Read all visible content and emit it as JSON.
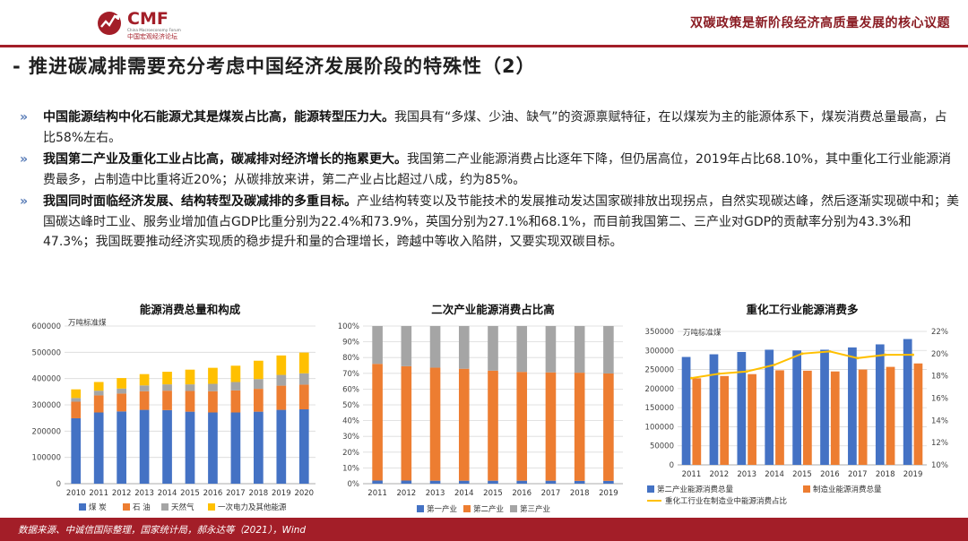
{
  "header": {
    "logo_text": "CMF",
    "logo_subtitle_en": "China Macroeconomy Forum",
    "logo_subtitle_cn": "中国宏观经济论坛",
    "title": "双碳政策是新阶段经济高质量发展的核心议题"
  },
  "section_title": "- 推进碳减排需要充分考虑中国经济发展阶段的特殊性（2）",
  "bullets": [
    {
      "marker": "»",
      "bold": "中国能源结构中化石能源尤其是煤炭占比高，能源转型压力大。",
      "text": "我国具有“多煤、少油、缺气”的资源禀赋特征，在以煤炭为主的能源体系下，煤炭消费总量最高，占比58%左右。"
    },
    {
      "marker": "»",
      "bold": "我国第二产业及重化工业占比高，碳减排对经济增长的拖累更大。",
      "text": "我国第二产业能源消费占比逐年下降，但仍居高位，2019年占比68.10%，其中重化工行业能源消费最多，占制造中比重将近20%；从碳排放来讲，第二产业占比超过八成，约为85%。"
    },
    {
      "marker": "»",
      "bold": "我国同时面临经济发展、结构转型及碳减排的多重目标。",
      "text": "产业结构转变以及节能技术的发展推动发达国家碳排放出现拐点，自然实现碳达峰，然后逐渐实现碳中和；美国碳达峰时工业、服务业增加值占GDP比重分别为22.4%和73.9%，英国分别为27.1%和68.1%，而目前我国第二、三产业对GDP的贡献率分别为43.3%和47.3%；我国既要推动经济实现质的稳步提升和量的合理增长，跨越中等收入陷阱，又要实现双碳目标。"
    }
  ],
  "colors": {
    "brand_red": "#a31e28",
    "blue": "#4472c4",
    "orange": "#ed7d31",
    "gray": "#a5a5a5",
    "yellow": "#ffc000"
  },
  "chart_data": [
    {
      "type": "bar",
      "stacked": true,
      "title": "能源消费总量和构成",
      "unit_label": "万吨标准煤",
      "categories": [
        "2010",
        "2011",
        "2012",
        "2013",
        "2014",
        "2015",
        "2016",
        "2017",
        "2018",
        "2019",
        "2020"
      ],
      "ylim": [
        0,
        600000
      ],
      "yticks": [
        0,
        100000,
        200000,
        300000,
        400000,
        500000,
        600000
      ],
      "series": [
        {
          "name": "煤 炭",
          "color": "#4472c4",
          "values": [
            249000,
            271000,
            275000,
            281000,
            280000,
            274000,
            271000,
            271000,
            274000,
            281000,
            283000
          ]
        },
        {
          "name": "石 油",
          "color": "#ed7d31",
          "values": [
            63000,
            65000,
            68000,
            71000,
            74000,
            79000,
            81000,
            84000,
            87000,
            92000,
            94000
          ]
        },
        {
          "name": "天然气",
          "color": "#a5a5a5",
          "values": [
            14000,
            18000,
            19000,
            22000,
            24000,
            25000,
            28000,
            32000,
            37000,
            41000,
            43000
          ]
        },
        {
          "name": "一次电力及其他能源",
          "color": "#ffc000",
          "values": [
            33000,
            33000,
            40000,
            43000,
            48000,
            56000,
            61000,
            62000,
            70000,
            74000,
            79000
          ]
        }
      ],
      "legend": "bottom",
      "grid": true
    },
    {
      "type": "bar",
      "stacked": true,
      "percent": true,
      "title": "二次产业能源消费占比高",
      "categories": [
        "2011",
        "2012",
        "2013",
        "2014",
        "2015",
        "2016",
        "2017",
        "2018",
        "2019"
      ],
      "ylim": [
        0,
        100
      ],
      "yticks": [
        0,
        10,
        20,
        30,
        40,
        50,
        60,
        70,
        80,
        90,
        100
      ],
      "series": [
        {
          "name": "第一产业",
          "color": "#4472c4",
          "values": [
            2.0,
            2.0,
            1.9,
            1.9,
            1.9,
            1.9,
            1.9,
            1.8,
            1.8
          ]
        },
        {
          "name": "第二产业",
          "color": "#ed7d31",
          "values": [
            74.0,
            72.5,
            71.7,
            71.0,
            69.8,
            69.0,
            68.7,
            68.6,
            68.1
          ]
        },
        {
          "name": "第三产业",
          "color": "#a5a5a5",
          "values": [
            24.0,
            25.5,
            26.4,
            27.1,
            28.3,
            29.1,
            29.4,
            29.6,
            30.1
          ]
        }
      ],
      "legend": "bottom",
      "grid": true
    },
    {
      "type": "bar",
      "combo_line": true,
      "title": "重化工行业能源消费多",
      "unit_label": "万吨标准煤",
      "categories": [
        "2011",
        "2012",
        "2013",
        "2014",
        "2015",
        "2016",
        "2017",
        "2018",
        "2019"
      ],
      "ylim": [
        0,
        350000
      ],
      "yticks": [
        0,
        50000,
        100000,
        150000,
        200000,
        250000,
        300000,
        350000
      ],
      "y2lim": [
        10,
        22
      ],
      "y2ticks": [
        10,
        12,
        14,
        16,
        18,
        20,
        22
      ],
      "series": [
        {
          "name": "第二产业能源消费总量",
          "color": "#4472c4",
          "axis": "left",
          "values": [
            283000,
            290000,
            296000,
            302000,
            300000,
            302000,
            308000,
            316000,
            330000
          ]
        },
        {
          "name": "制造业能源消费总量",
          "color": "#ed7d31",
          "axis": "left",
          "values": [
            227000,
            233000,
            238000,
            248000,
            247000,
            245000,
            250000,
            257000,
            266000
          ]
        },
        {
          "name": "重化工行业在制造业中能源消费占比",
          "color": "#ffc000",
          "axis": "right",
          "type": "line",
          "values": [
            17.8,
            18.2,
            18.4,
            19.0,
            20.0,
            20.2,
            19.6,
            19.9,
            19.9
          ]
        }
      ],
      "legend": "bottom",
      "grid": true
    }
  ],
  "footer": "数据来源、中诚信国际整理，国家统计局，郝永达等（2021），Wind"
}
